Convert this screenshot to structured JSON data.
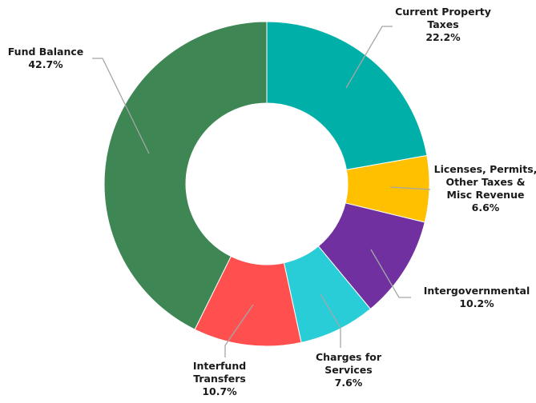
{
  "chart_data": {
    "type": "pie",
    "variant": "donut",
    "title": "",
    "legend": "none",
    "start_angle_deg": 0,
    "direction": "clockwise",
    "slices": [
      {
        "label_lines": [
          "Current Property",
          "Taxes"
        ],
        "percent_label": "22.2%",
        "value": 22.2,
        "color": "#00b0a8"
      },
      {
        "label_lines": [
          "Licenses, Permits,",
          "Other Taxes &",
          "Misc Revenue"
        ],
        "percent_label": "6.6%",
        "value": 6.6,
        "color": "#ffc000"
      },
      {
        "label_lines": [
          "Intergovernmental"
        ],
        "percent_label": "10.2%",
        "value": 10.2,
        "color": "#7030a0"
      },
      {
        "label_lines": [
          "Charges for",
          "Services"
        ],
        "percent_label": "7.6%",
        "value": 7.6,
        "color": "#28cdd8"
      },
      {
        "label_lines": [
          "Interfund",
          "Transfers"
        ],
        "percent_label": "10.7%",
        "value": 10.7,
        "color": "#ff4f4f"
      },
      {
        "label_lines": [
          "Fund Balance"
        ],
        "percent_label": "42.7%",
        "value": 42.7,
        "color": "#3e8654"
      }
    ]
  }
}
